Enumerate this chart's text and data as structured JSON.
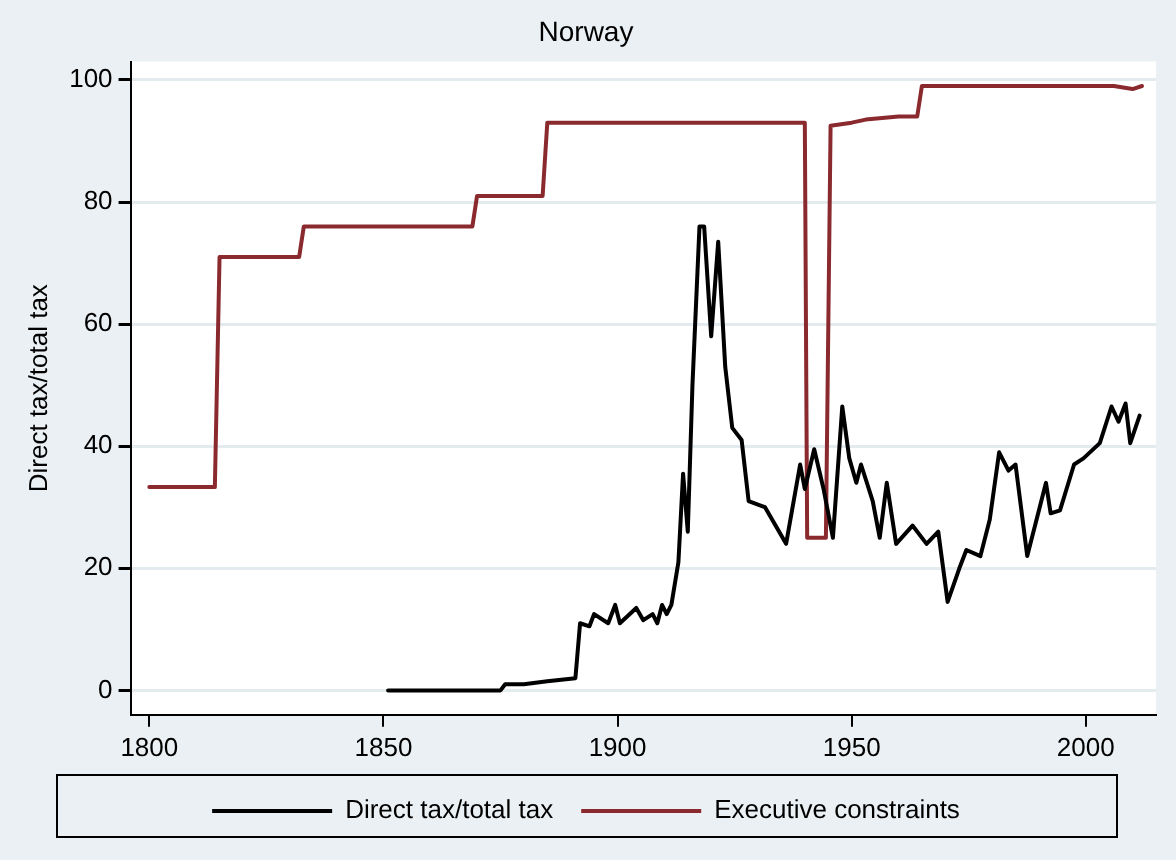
{
  "chart_data": {
    "type": "line",
    "title": "Norway",
    "ylabel": "Direct tax/total tax",
    "xlim": [
      1796,
      2015
    ],
    "ylim": [
      -4,
      103
    ],
    "xticks": [
      1800,
      1850,
      1900,
      1950,
      2000
    ],
    "yticks": [
      0,
      20,
      40,
      60,
      80,
      100
    ],
    "grid": "y",
    "legend": "bottom",
    "marker": "none",
    "line_style": "solid",
    "series": [
      {
        "name": "Direct tax/total tax",
        "color": "#000000",
        "x": [
          1851,
          1875,
          1876,
          1880,
          1885,
          1891,
          1892,
          1894,
          1895,
          1898,
          1899.5,
          1900.5,
          1904,
          1905.5,
          1907.5,
          1908.5,
          1909.5,
          1910.5,
          1911.5,
          1913,
          1914,
          1915,
          1916,
          1917.5,
          1918.5,
          1920,
          1921.5,
          1923,
          1924.5,
          1926.5,
          1928,
          1931.5,
          1936,
          1939,
          1940,
          1942,
          1944,
          1946,
          1948,
          1949.5,
          1951,
          1952,
          1954.5,
          1956,
          1957.5,
          1959.5,
          1963,
          1966,
          1968.5,
          1970.5,
          1973,
          1974.5,
          1977.5,
          1979.5,
          1981.5,
          1983.5,
          1985,
          1987.5,
          1991.5,
          1992.5,
          1994.5,
          1997.5,
          1999.5,
          2003,
          2005.5,
          2007,
          2008.5,
          2009.5,
          2011.5
        ],
        "values": [
          0,
          0,
          1,
          1,
          1.5,
          2,
          11,
          10.5,
          12.5,
          11,
          14,
          11,
          13.5,
          11.5,
          12.5,
          11,
          14,
          12.5,
          14,
          21,
          35.5,
          26,
          50,
          76,
          76,
          58,
          73.5,
          53,
          43,
          41,
          31,
          30,
          24,
          37,
          33,
          39.5,
          33,
          25,
          46.5,
          38,
          34,
          37,
          31,
          25,
          34,
          24,
          27,
          24,
          26,
          14.5,
          20,
          23,
          22,
          28,
          39,
          36,
          37,
          22,
          34,
          29,
          29.5,
          37,
          38,
          40.5,
          46.5,
          44,
          47,
          40.5,
          45
        ]
      },
      {
        "name": "Executive constraints",
        "color": "#8b2a2e",
        "x": [
          1800,
          1814,
          1815,
          1832,
          1833,
          1869,
          1870,
          1884,
          1885,
          1940,
          1940.5,
          1944.5,
          1945.5,
          1950,
          1953,
          1960,
          1964,
          1965,
          2006,
          2010,
          2012
        ],
        "values": [
          33.3,
          33.3,
          71,
          71,
          76,
          76,
          81,
          81,
          93,
          93,
          25,
          25,
          92.5,
          93,
          93.5,
          94,
          94,
          99,
          99,
          98.5,
          99
        ]
      }
    ]
  }
}
